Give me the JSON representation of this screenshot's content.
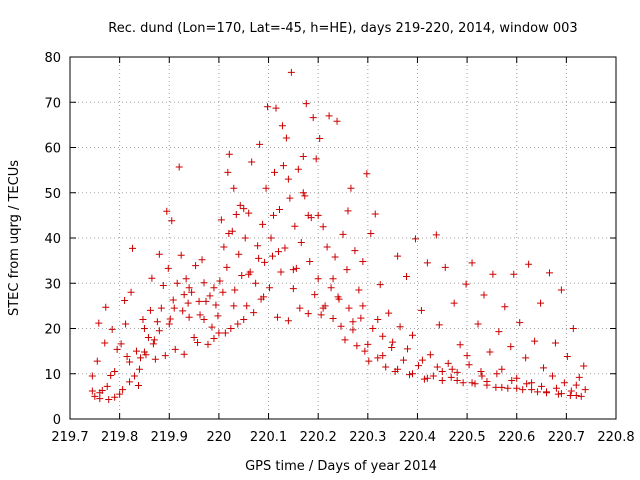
{
  "chart_data": {
    "type": "scatter",
    "title": "Rec. dund (Lon=170, Lat=-45, h=HE), days 219-220, 2014, window 003",
    "xlabel": "GPS time / Days of year 2014",
    "ylabel": "STEC from uqrg / TECUs",
    "xlim": [
      219.7,
      220.8
    ],
    "ylim": [
      0,
      80
    ],
    "xticks": [
      "219.7",
      "219.8",
      "219.9",
      "220",
      "220.1",
      "220.2",
      "220.3",
      "220.4",
      "220.5",
      "220.6",
      "220.7",
      "220.8"
    ],
    "yticks": [
      "0",
      "10",
      "20",
      "30",
      "40",
      "50",
      "60",
      "70",
      "80"
    ],
    "grid": true,
    "marker": "+",
    "color": "#cc0000",
    "series": [
      {
        "name": "STEC",
        "points": [
          [
            219.745,
            9.5
          ],
          [
            219.745,
            6.2
          ],
          [
            219.75,
            5.0
          ],
          [
            219.755,
            12.8
          ],
          [
            219.758,
            21.2
          ],
          [
            219.76,
            4.5
          ],
          [
            219.765,
            6.3
          ],
          [
            219.77,
            16.8
          ],
          [
            219.772,
            24.7
          ],
          [
            219.775,
            7.2
          ],
          [
            219.778,
            4.3
          ],
          [
            219.782,
            9.6
          ],
          [
            219.785,
            19.8
          ],
          [
            219.79,
            10.5
          ],
          [
            219.795,
            15.4
          ],
          [
            219.8,
            5.5
          ],
          [
            219.803,
            16.6
          ],
          [
            219.806,
            6.5
          ],
          [
            219.81,
            26.2
          ],
          [
            219.812,
            21.0
          ],
          [
            219.815,
            13.8
          ],
          [
            219.82,
            12.6
          ],
          [
            219.823,
            28.0
          ],
          [
            219.826,
            37.7
          ],
          [
            219.83,
            9.5
          ],
          [
            219.834,
            15.0
          ],
          [
            219.838,
            7.4
          ],
          [
            219.842,
            13.5
          ],
          [
            219.847,
            22.0
          ],
          [
            219.85,
            20.0
          ],
          [
            219.853,
            14.2
          ],
          [
            219.858,
            18.0
          ],
          [
            219.862,
            24.0
          ],
          [
            219.865,
            31.1
          ],
          [
            219.868,
            16.6
          ],
          [
            219.872,
            13.2
          ],
          [
            219.876,
            21.5
          ],
          [
            219.88,
            36.4
          ],
          [
            219.884,
            24.5
          ],
          [
            219.888,
            29.5
          ],
          [
            219.892,
            14.0
          ],
          [
            219.895,
            45.9
          ],
          [
            219.898,
            33.3
          ],
          [
            219.902,
            22.1
          ],
          [
            219.905,
            43.8
          ],
          [
            219.908,
            26.3
          ],
          [
            219.912,
            15.4
          ],
          [
            219.916,
            30.0
          ],
          [
            219.92,
            55.7
          ],
          [
            219.924,
            36.2
          ],
          [
            219.927,
            23.9
          ],
          [
            219.93,
            14.3
          ],
          [
            219.934,
            31.0
          ],
          [
            219.938,
            25.6
          ],
          [
            219.94,
            22.5
          ],
          [
            219.945,
            28.0
          ],
          [
            219.95,
            18.0
          ],
          [
            219.953,
            33.9
          ],
          [
            219.957,
            16.9
          ],
          [
            219.962,
            23.0
          ],
          [
            219.966,
            35.2
          ],
          [
            219.97,
            30.1
          ],
          [
            219.974,
            26.0
          ],
          [
            219.978,
            16.5
          ],
          [
            219.982,
            27.2
          ],
          [
            219.986,
            20.3
          ],
          [
            219.99,
            17.8
          ],
          [
            219.994,
            25.2
          ],
          [
            219.998,
            22.8
          ],
          [
            220.002,
            30.5
          ],
          [
            220.005,
            44.0
          ],
          [
            220.008,
            28.0
          ],
          [
            220.01,
            38.0
          ],
          [
            220.013,
            19.0
          ],
          [
            220.016,
            33.5
          ],
          [
            220.018,
            54.5
          ],
          [
            220.021,
            58.5
          ],
          [
            220.024,
            20.0
          ],
          [
            220.027,
            41.5
          ],
          [
            220.03,
            51.0
          ],
          [
            220.032,
            28.5
          ],
          [
            220.035,
            45.2
          ],
          [
            220.038,
            21.0
          ],
          [
            220.04,
            36.4
          ],
          [
            220.043,
            47.2
          ],
          [
            220.046,
            31.7
          ],
          [
            220.05,
            22.0
          ],
          [
            220.053,
            40.0
          ],
          [
            220.056,
            25.0
          ],
          [
            220.06,
            45.5
          ],
          [
            220.063,
            32.5
          ],
          [
            220.066,
            56.8
          ],
          [
            220.07,
            23.5
          ],
          [
            220.074,
            30.0
          ],
          [
            220.078,
            38.3
          ],
          [
            220.082,
            60.7
          ],
          [
            220.085,
            26.5
          ],
          [
            220.088,
            43.0
          ],
          [
            220.092,
            34.6
          ],
          [
            220.095,
            51.0
          ],
          [
            220.098,
            69.0
          ],
          [
            220.102,
            29.0
          ],
          [
            220.105,
            40.0
          ],
          [
            220.108,
            36.0
          ],
          [
            220.112,
            54.5
          ],
          [
            220.115,
            68.7
          ],
          [
            220.118,
            22.5
          ],
          [
            220.122,
            46.3
          ],
          [
            220.125,
            32.5
          ],
          [
            220.128,
            64.8
          ],
          [
            220.13,
            56.0
          ],
          [
            220.133,
            37.8
          ],
          [
            220.136,
            62.1
          ],
          [
            220.14,
            21.7
          ],
          [
            220.143,
            48.8
          ],
          [
            220.146,
            76.6
          ],
          [
            220.15,
            28.8
          ],
          [
            220.153,
            42.6
          ],
          [
            220.156,
            33.3
          ],
          [
            220.16,
            55.2
          ],
          [
            220.163,
            24.5
          ],
          [
            220.166,
            39.0
          ],
          [
            220.17,
            58.0
          ],
          [
            220.173,
            49.3
          ],
          [
            220.176,
            69.7
          ],
          [
            220.18,
            23.3
          ],
          [
            220.183,
            34.8
          ],
          [
            220.186,
            44.5
          ],
          [
            220.19,
            66.6
          ],
          [
            220.193,
            27.5
          ],
          [
            220.196,
            57.5
          ],
          [
            220.2,
            31.0
          ],
          [
            220.203,
            62.0
          ],
          [
            220.206,
            23.0
          ],
          [
            220.21,
            42.5
          ],
          [
            220.214,
            25.0
          ],
          [
            220.218,
            38.0
          ],
          [
            220.222,
            67.0
          ],
          [
            220.226,
            29.0
          ],
          [
            220.23,
            22.2
          ],
          [
            220.234,
            35.8
          ],
          [
            220.238,
            65.8
          ],
          [
            220.242,
            26.5
          ],
          [
            220.246,
            20.5
          ],
          [
            220.25,
            40.8
          ],
          [
            220.254,
            17.5
          ],
          [
            220.258,
            33.0
          ],
          [
            220.262,
            24.5
          ],
          [
            220.266,
            51.0
          ],
          [
            220.27,
            19.7
          ],
          [
            220.274,
            37.2
          ],
          [
            220.278,
            16.2
          ],
          [
            220.282,
            28.5
          ],
          [
            220.286,
            22.3
          ],
          [
            220.29,
            34.8
          ],
          [
            220.294,
            15.0
          ],
          [
            220.298,
            54.2
          ],
          [
            220.302,
            12.8
          ],
          [
            220.306,
            41.0
          ],
          [
            220.31,
            20.0
          ],
          [
            220.315,
            45.3
          ],
          [
            220.32,
            13.5
          ],
          [
            220.325,
            29.7
          ],
          [
            220.33,
            18.3
          ],
          [
            220.336,
            11.5
          ],
          [
            220.342,
            23.4
          ],
          [
            220.348,
            15.8
          ],
          [
            220.355,
            10.5
          ],
          [
            220.36,
            36.0
          ],
          [
            220.365,
            20.4
          ],
          [
            220.372,
            13.0
          ],
          [
            220.378,
            31.5
          ],
          [
            220.384,
            9.8
          ],
          [
            220.39,
            18.5
          ],
          [
            220.396,
            39.8
          ],
          [
            220.402,
            11.8
          ],
          [
            220.408,
            24.0
          ],
          [
            220.414,
            8.8
          ],
          [
            220.42,
            34.5
          ],
          [
            220.426,
            14.2
          ],
          [
            220.432,
            9.5
          ],
          [
            220.438,
            40.7
          ],
          [
            220.444,
            20.8
          ],
          [
            220.45,
            8.5
          ],
          [
            220.456,
            33.5
          ],
          [
            220.462,
            12.3
          ],
          [
            220.468,
            9.2
          ],
          [
            220.474,
            25.6
          ],
          [
            220.48,
            10.3
          ],
          [
            220.486,
            16.4
          ],
          [
            220.492,
            8.0
          ],
          [
            220.498,
            29.8
          ],
          [
            220.504,
            12.0
          ],
          [
            220.51,
            34.5
          ],
          [
            220.516,
            7.8
          ],
          [
            220.522,
            21.0
          ],
          [
            220.528,
            10.5
          ],
          [
            220.534,
            27.4
          ],
          [
            220.54,
            8.3
          ],
          [
            220.546,
            14.8
          ],
          [
            220.552,
            32.0
          ],
          [
            220.558,
            7.0
          ],
          [
            220.564,
            19.3
          ],
          [
            220.57,
            11.0
          ],
          [
            220.576,
            24.8
          ],
          [
            220.582,
            6.8
          ],
          [
            220.588,
            16.0
          ],
          [
            220.594,
            32.0
          ],
          [
            220.6,
            9.0
          ],
          [
            220.606,
            21.3
          ],
          [
            220.612,
            6.5
          ],
          [
            220.618,
            13.5
          ],
          [
            220.624,
            34.2
          ],
          [
            220.63,
            8.0
          ],
          [
            220.636,
            17.2
          ],
          [
            220.642,
            6.0
          ],
          [
            220.648,
            25.6
          ],
          [
            220.654,
            11.3
          ],
          [
            220.66,
            5.8
          ],
          [
            220.666,
            32.3
          ],
          [
            220.672,
            9.5
          ],
          [
            220.678,
            16.8
          ],
          [
            220.684,
            5.5
          ],
          [
            220.69,
            28.5
          ],
          [
            220.696,
            8.0
          ],
          [
            220.702,
            13.8
          ],
          [
            220.708,
            5.2
          ],
          [
            220.714,
            20.0
          ],
          [
            220.72,
            7.5
          ],
          [
            220.726,
            9.2
          ],
          [
            220.73,
            5.0
          ],
          [
            220.735,
            11.7
          ],
          [
            220.738,
            6.5
          ],
          [
            219.76,
            5.8
          ],
          [
            219.79,
            4.8
          ],
          [
            219.82,
            8.2
          ],
          [
            219.85,
            14.8
          ],
          [
            219.88,
            19.5
          ],
          [
            219.91,
            24.5
          ],
          [
            219.94,
            29.0
          ],
          [
            219.97,
            22.0
          ],
          [
            220.0,
            19.0
          ],
          [
            220.03,
            25.0
          ],
          [
            220.06,
            32.0
          ],
          [
            220.09,
            27.0
          ],
          [
            220.12,
            37.0
          ],
          [
            220.15,
            33.0
          ],
          [
            220.18,
            45.0
          ],
          [
            220.21,
            24.5
          ],
          [
            220.24,
            27.0
          ],
          [
            220.27,
            21.5
          ],
          [
            220.3,
            16.5
          ],
          [
            220.33,
            14.0
          ],
          [
            220.36,
            11.0
          ],
          [
            220.39,
            10.0
          ],
          [
            220.42,
            9.0
          ],
          [
            220.45,
            10.5
          ],
          [
            220.48,
            8.5
          ],
          [
            220.51,
            8.0
          ],
          [
            220.54,
            7.5
          ],
          [
            220.57,
            7.0
          ],
          [
            220.6,
            6.8
          ],
          [
            220.63,
            6.5
          ],
          [
            220.66,
            6.0
          ],
          [
            220.69,
            5.6
          ],
          [
            220.72,
            5.2
          ],
          [
            219.84,
            11.0
          ],
          [
            219.87,
            17.5
          ],
          [
            219.9,
            21.0
          ],
          [
            219.93,
            27.5
          ],
          [
            219.96,
            26.0
          ],
          [
            219.99,
            29.0
          ],
          [
            220.02,
            41.0
          ],
          [
            220.05,
            46.5
          ],
          [
            220.08,
            35.5
          ],
          [
            220.11,
            45.0
          ],
          [
            220.14,
            53.0
          ],
          [
            220.17,
            50.0
          ],
          [
            220.2,
            45.0
          ],
          [
            220.23,
            31.0
          ],
          [
            220.26,
            46.0
          ],
          [
            220.29,
            25.0
          ],
          [
            220.32,
            22.0
          ],
          [
            220.35,
            17.0
          ],
          [
            220.38,
            15.5
          ],
          [
            220.41,
            13.0
          ],
          [
            220.44,
            11.5
          ],
          [
            220.47,
            11.0
          ],
          [
            220.5,
            14.0
          ],
          [
            220.53,
            9.5
          ],
          [
            220.56,
            10.0
          ],
          [
            220.59,
            8.5
          ],
          [
            220.62,
            7.8
          ],
          [
            220.65,
            7.2
          ],
          [
            220.68,
            6.8
          ],
          [
            220.71,
            6.2
          ]
        ]
      }
    ]
  }
}
